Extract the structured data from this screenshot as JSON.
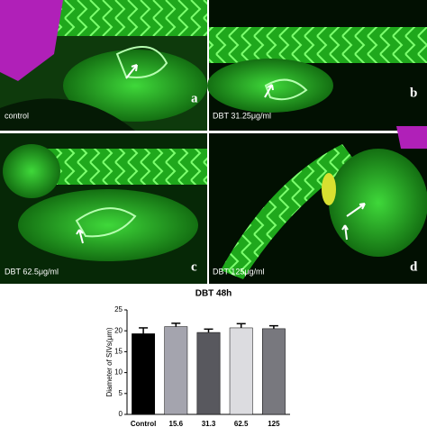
{
  "panels": [
    {
      "caption": "control",
      "letter": "a"
    },
    {
      "caption": "DBT  31.25μg/ml",
      "letter": "b"
    },
    {
      "caption": "DBT  62.5μg/ml",
      "letter": "c"
    },
    {
      "caption": "DBT  125μg/ml",
      "letter": "d"
    }
  ],
  "chart_data": {
    "type": "bar",
    "title": "DBT 48h",
    "y_label": "Diameter of SIVs(μm)",
    "categories": [
      "Control",
      "15.6",
      "31.3",
      "62.5",
      "125"
    ],
    "values": [
      19.3,
      21.0,
      19.6,
      20.7,
      20.5
    ],
    "errors": [
      1.4,
      0.8,
      0.8,
      1.0,
      0.7
    ],
    "colors": [
      "#000000",
      "#a4a4ae",
      "#58585e",
      "#dcdce0",
      "#78787e"
    ],
    "ylim": [
      0,
      25
    ],
    "yticks": [
      0,
      5,
      10,
      15,
      20,
      25
    ]
  }
}
